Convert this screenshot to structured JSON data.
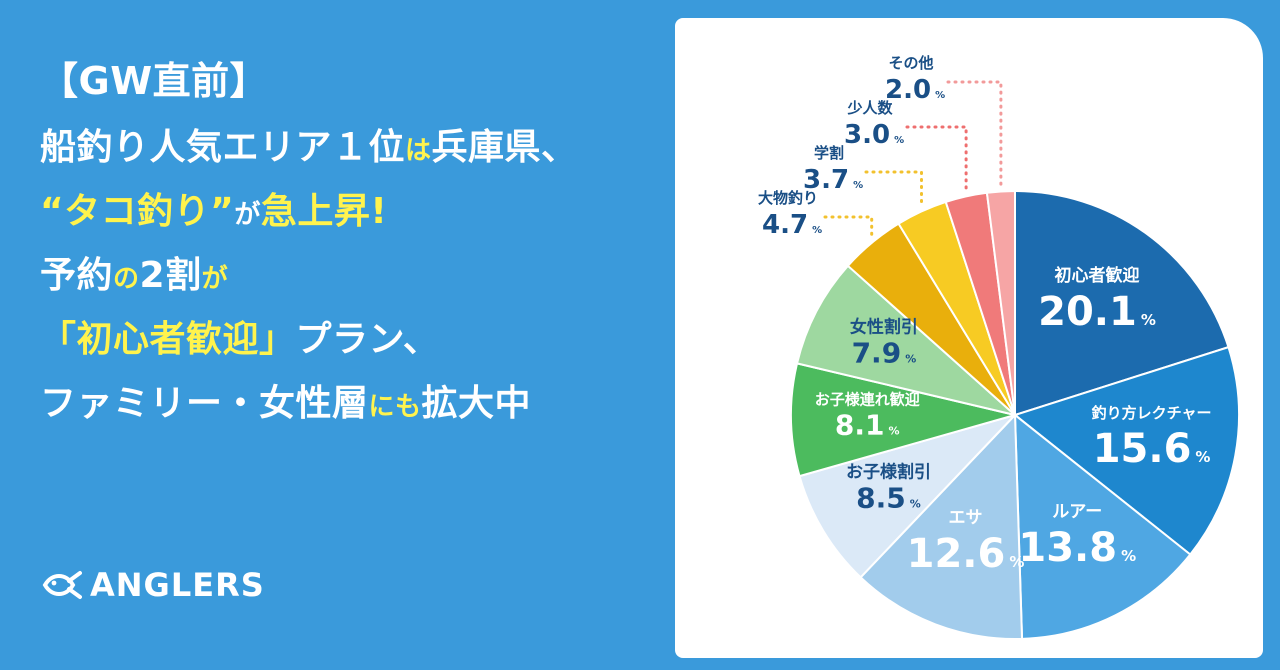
{
  "headline": {
    "line1": "【GW直前】",
    "line2": {
      "a": "船釣り人気エリア１位",
      "b": "は",
      "c": "兵庫県、"
    },
    "line3": {
      "a": "“タコ釣り”",
      "b": "が",
      "c": "急上昇!"
    },
    "line4": {
      "a": "予約",
      "b": "の",
      "c": "2割",
      "d": "が"
    },
    "line5": {
      "a": "「初心者歓迎」",
      "b": "プラン、"
    },
    "line6": {
      "a": "ファミリー・女性層",
      "b": "にも",
      "c": "拡大中"
    }
  },
  "brand": {
    "name": "ANGLERS"
  },
  "colors": {
    "background": "#3A9ADB",
    "headline_text": "#FFFFFF",
    "highlight_text": "#FFF34D",
    "label_text": "#1A4F86"
  },
  "chart_data": {
    "type": "pie",
    "unit": "%",
    "slices": [
      {
        "label": "初心者歓迎",
        "value": 20.1,
        "color": "#1C6BAE",
        "text": "#FFFFFF"
      },
      {
        "label": "釣り方レクチャー",
        "value": 15.6,
        "color": "#1E87CE",
        "text": "#FFFFFF"
      },
      {
        "label": "ルアー",
        "value": 13.8,
        "color": "#4FA7E3",
        "text": "#FFFFFF"
      },
      {
        "label": "エサ",
        "value": 12.6,
        "color": "#A2CCEC",
        "text": "#FFFFFF"
      },
      {
        "label": "お子様割引",
        "value": 8.5,
        "color": "#DBE9F7",
        "text": "#1A4F86"
      },
      {
        "label": "お子様連れ歓迎",
        "value": 8.1,
        "color": "#4CBB5E",
        "text": "#FFFFFF"
      },
      {
        "label": "女性割引",
        "value": 7.9,
        "color": "#9ED8A0",
        "text": "#1A4F86"
      },
      {
        "label": "大物釣り",
        "value": 4.7,
        "color": "#E9AF0C",
        "text": "#1A4F86",
        "outside": true,
        "leader": "#F2C12E"
      },
      {
        "label": "学割",
        "value": 3.7,
        "color": "#F7CB23",
        "text": "#1A4F86",
        "outside": true,
        "leader": "#F2C12E"
      },
      {
        "label": "少人数",
        "value": 3.0,
        "color": "#F07A7A",
        "text": "#1A4F86",
        "outside": true,
        "leader": "#EE6F6F"
      },
      {
        "label": "その他",
        "value": 2.0,
        "color": "#F6A5A5",
        "text": "#1A4F86",
        "outside": true,
        "leader": "#F29A9A"
      }
    ]
  }
}
